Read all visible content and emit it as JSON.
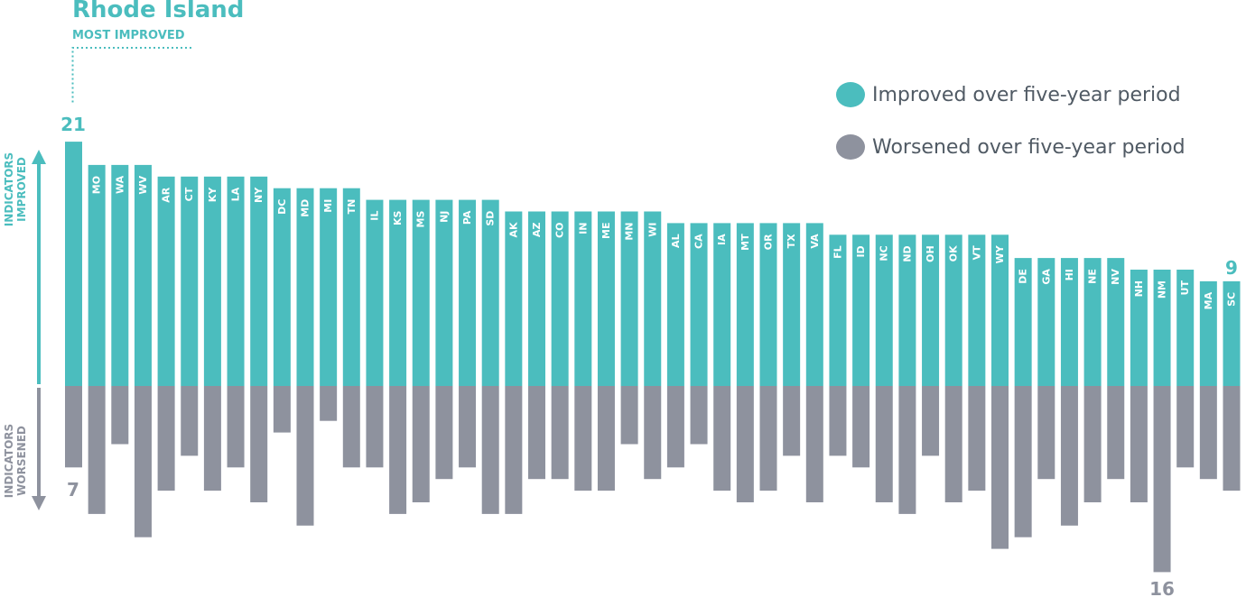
{
  "highlight": {
    "title": "Rhode Island",
    "subtitle": "MOST IMPROVED"
  },
  "legend": [
    {
      "label": "Improved over five-year period",
      "color": "#4bbdbe"
    },
    {
      "label": "Worsened over five-year period",
      "color": "#8e929e"
    }
  ],
  "colors": {
    "improved": "#4bbdbe",
    "worsened": "#8e929e",
    "accent": "#4bbdbe",
    "muted": "#8e929e"
  },
  "chart_data": {
    "type": "bar",
    "ylabel_top": "INDICATORS IMPROVED",
    "ylabel_bottom": "INDICATORS WORSENED",
    "value_labels": {
      "top_first": "21",
      "bottom_first": "7",
      "top_last": "9",
      "bottom_min": "16"
    },
    "categories": [
      "RI",
      "MO",
      "WA",
      "WV",
      "AR",
      "CT",
      "KY",
      "LA",
      "NY",
      "DC",
      "MD",
      "MI",
      "TN",
      "IL",
      "KS",
      "MS",
      "NJ",
      "PA",
      "SD",
      "AK",
      "AZ",
      "CO",
      "IN",
      "ME",
      "MN",
      "WI",
      "AL",
      "CA",
      "IA",
      "MT",
      "OR",
      "TX",
      "VA",
      "FL",
      "ID",
      "NC",
      "ND",
      "OH",
      "OK",
      "VT",
      "WY",
      "DE",
      "GA",
      "HI",
      "NE",
      "NV",
      "NH",
      "NM",
      "UT",
      "MA",
      "SC"
    ],
    "series": [
      {
        "name": "Improved over five-year period",
        "values": [
          21,
          19,
          19,
          19,
          18,
          18,
          18,
          18,
          18,
          17,
          17,
          17,
          17,
          16,
          16,
          16,
          16,
          16,
          16,
          15,
          15,
          15,
          15,
          15,
          15,
          15,
          14,
          14,
          14,
          14,
          14,
          14,
          14,
          13,
          13,
          13,
          13,
          13,
          13,
          13,
          13,
          11,
          11,
          11,
          11,
          11,
          10,
          10,
          10,
          9,
          9
        ]
      },
      {
        "name": "Worsened over five-year period",
        "values": [
          7,
          11,
          5,
          13,
          9,
          6,
          9,
          7,
          10,
          4,
          12,
          3,
          7,
          7,
          11,
          10,
          8,
          7,
          11,
          11,
          8,
          8,
          9,
          9,
          5,
          8,
          7,
          5,
          9,
          10,
          9,
          6,
          10,
          6,
          7,
          10,
          11,
          6,
          10,
          9,
          14,
          13,
          8,
          12,
          10,
          8,
          10,
          16,
          7,
          8,
          9
        ]
      }
    ]
  }
}
